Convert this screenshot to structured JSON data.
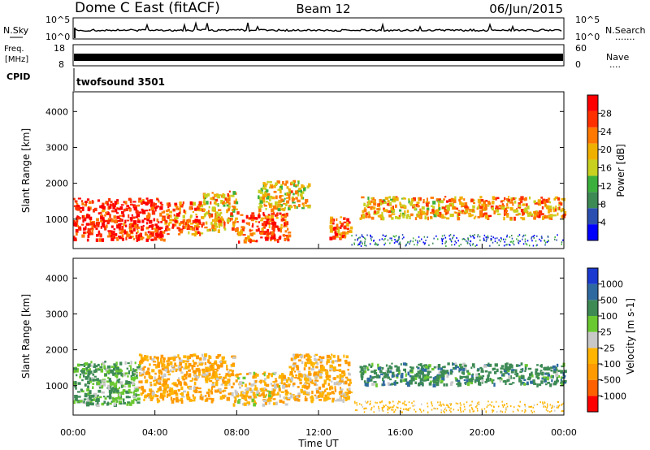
{
  "header": {
    "station": "Dome C East (fitACF)",
    "beam": "Beam 12",
    "date": "06/Jun/2015"
  },
  "nsky_panel": {
    "left_label": "N.Sky",
    "right_label": "N.Search",
    "right_dots": ".......",
    "tick_top": "10^5",
    "tick_bottom": "10^0"
  },
  "freq_panel": {
    "left_label_1": "Freq.",
    "left_label_2": "[MHz]",
    "left_ticks": [
      "18",
      "8"
    ],
    "right_label": "Nave",
    "right_dots": "....",
    "right_ticks": [
      "60",
      "0"
    ]
  },
  "cpid_panel": {
    "label": "CPID",
    "program": "twofsound 3501"
  },
  "colors": {
    "power_scale": [
      "#0000ff",
      "#2a4fb0",
      "#3d8a55",
      "#3cb03c",
      "#c8d020",
      "#f0b000",
      "#ff7800",
      "#ff3000",
      "#ff0000"
    ],
    "velocity_scale": [
      "#ff0000",
      "#ff6000",
      "#ff9a00",
      "#ffb400",
      "#c8c8c8",
      "#6ac830",
      "#3d8a55",
      "#2e6aa0",
      "#1a3ad0"
    ]
  },
  "chart_data": [
    {
      "type": "heatmap",
      "name": "power",
      "ylabel": "Slant Range [km]",
      "yticks": [
        "4000",
        "3000",
        "2000",
        "1000"
      ],
      "ylim": [
        180,
        4550
      ],
      "colorbar_label": "Power [dB]",
      "colorbar_ticks": [
        "28",
        "24",
        "20",
        "16",
        "12",
        "8",
        "4"
      ],
      "colorbar_range": [
        0,
        32
      ],
      "regions": [
        {
          "t0": 0.0,
          "t1": 4.4,
          "r0": 450,
          "r1": 1600,
          "level": 28
        },
        {
          "t0": 4.4,
          "t1": 6.3,
          "r0": 600,
          "r1": 1500,
          "level": 24
        },
        {
          "t0": 6.3,
          "t1": 8.0,
          "r0": 700,
          "r1": 1800,
          "level": 20
        },
        {
          "t0": 8.0,
          "t1": 10.5,
          "r0": 400,
          "r1": 1200,
          "level": 26
        },
        {
          "t0": 9.0,
          "t1": 11.5,
          "r0": 1300,
          "r1": 2100,
          "level": 18
        },
        {
          "t0": 12.5,
          "t1": 13.6,
          "r0": 500,
          "r1": 1100,
          "level": 24
        },
        {
          "t0": 14.0,
          "t1": 18.0,
          "r0": 1050,
          "r1": 1650,
          "level": 20
        },
        {
          "t0": 18.0,
          "t1": 24.0,
          "r0": 1050,
          "r1": 1650,
          "level": 22
        }
      ]
    },
    {
      "type": "heatmap",
      "name": "velocity",
      "ylabel": "Slant Range [km]",
      "yticks": [
        "4000",
        "3000",
        "2000",
        "1000"
      ],
      "ylim": [
        180,
        4550
      ],
      "colorbar_label": "Velocity [m s-1]",
      "colorbar_ticks": [
        "1000",
        "500",
        "100",
        "25",
        "-25",
        "-100",
        "-500",
        "-1000"
      ],
      "xlabel": "Time UT",
      "xticks": [
        "00:00",
        "04:00",
        "08:00",
        "12:00",
        "16:00",
        "20:00",
        "00:00"
      ],
      "xlim": [
        0,
        24
      ],
      "regions": [
        {
          "t0": 0.0,
          "t1": 3.2,
          "r0": 500,
          "r1": 1700,
          "level": 100
        },
        {
          "t0": 3.2,
          "t1": 7.8,
          "r0": 600,
          "r1": 1900,
          "level": -100
        },
        {
          "t0": 7.8,
          "t1": 10.5,
          "r0": 500,
          "r1": 1400,
          "level": -60
        },
        {
          "t0": 10.5,
          "t1": 13.5,
          "r0": 600,
          "r1": 1900,
          "level": -80
        },
        {
          "t0": 14.0,
          "t1": 24.0,
          "r0": 1050,
          "r1": 1650,
          "level": 300
        }
      ]
    }
  ]
}
